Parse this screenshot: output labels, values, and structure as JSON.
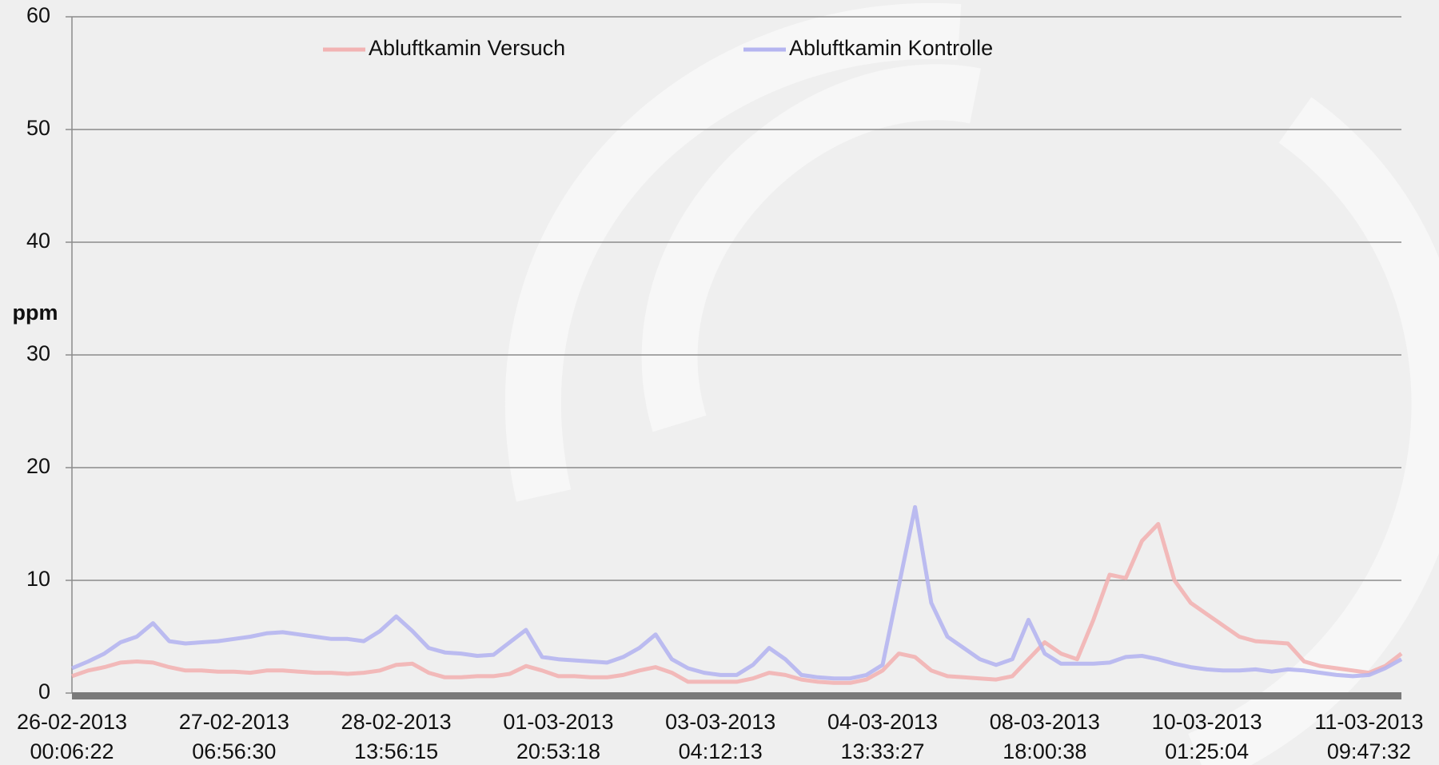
{
  "chart_data": {
    "type": "line",
    "y_label": "ppm",
    "categories": [
      "26-02-2013 00:06:22",
      null,
      null,
      null,
      null,
      null,
      null,
      null,
      null,
      null,
      "27-02-2013 06:56:30",
      null,
      null,
      null,
      null,
      null,
      null,
      null,
      null,
      null,
      "28-02-2013 13:56:15",
      null,
      null,
      null,
      null,
      null,
      null,
      null,
      null,
      null,
      "01-03-2013 20:53:18",
      null,
      null,
      null,
      null,
      null,
      null,
      null,
      null,
      null,
      "03-03-2013 04:12:13",
      null,
      null,
      null,
      null,
      null,
      null,
      null,
      null,
      null,
      "04-03-2013 13:33:27",
      null,
      null,
      null,
      null,
      null,
      null,
      null,
      null,
      null,
      "08-03-2013 18:00:38",
      null,
      null,
      null,
      null,
      null,
      null,
      null,
      null,
      null,
      "10-03-2013 01:25:04",
      null,
      null,
      null,
      null,
      null,
      null,
      null,
      null,
      null,
      "11-03-2013 09:47:32",
      null,
      null
    ],
    "series": [
      {
        "name": "Abluftkamin Versuch",
        "color": "#f2b3b3",
        "values": [
          1.5,
          2,
          2.3,
          2.7,
          2.8,
          2.7,
          2.3,
          2,
          2,
          1.9,
          1.9,
          1.8,
          2,
          2,
          1.9,
          1.8,
          1.8,
          1.7,
          1.8,
          2,
          2.5,
          2.6,
          1.8,
          1.4,
          1.4,
          1.5,
          1.5,
          1.7,
          2.4,
          2,
          1.5,
          1.5,
          1.4,
          1.4,
          1.6,
          2,
          2.3,
          1.8,
          1,
          1,
          1,
          1,
          1.3,
          1.8,
          1.6,
          1.2,
          1,
          0.9,
          0.9,
          1.2,
          2,
          3.5,
          3.2,
          2,
          1.5,
          1.4,
          1.3,
          1.2,
          1.5,
          3,
          4.5,
          3.5,
          3,
          6.5,
          10.5,
          10.2,
          13.5,
          15,
          10,
          8,
          7,
          6,
          5,
          4.6,
          4.5,
          4.4,
          2.8,
          2.4,
          2.2,
          2,
          1.8,
          2.4,
          3.5
        ]
      },
      {
        "name": "Abluftkamin Kontrolle",
        "color": "#b5b5f0",
        "values": [
          2.2,
          2.8,
          3.5,
          4.5,
          5,
          6.2,
          4.6,
          4.4,
          4.5,
          4.6,
          4.8,
          5,
          5.3,
          5.4,
          5.2,
          5,
          4.8,
          4.8,
          4.6,
          5.5,
          6.8,
          5.5,
          4,
          3.6,
          3.5,
          3.3,
          3.4,
          4.5,
          5.6,
          3.2,
          3,
          2.9,
          2.8,
          2.7,
          3.2,
          4,
          5.2,
          3,
          2.2,
          1.8,
          1.6,
          1.6,
          2.5,
          4,
          3,
          1.6,
          1.4,
          1.3,
          1.3,
          1.6,
          2.5,
          9.5,
          16.5,
          8,
          5,
          4,
          3,
          2.5,
          3,
          6.5,
          3.5,
          2.6,
          2.6,
          2.6,
          2.7,
          3.2,
          3.3,
          3,
          2.6,
          2.3,
          2.1,
          2,
          2,
          2.1,
          1.9,
          2.1,
          2,
          1.8,
          1.6,
          1.5,
          1.6,
          2.2,
          3
        ]
      }
    ],
    "ylim": [
      0,
      60
    ],
    "yticks": [
      0,
      10,
      20,
      30,
      40,
      50,
      60
    ],
    "grid": true,
    "legend": "top"
  }
}
